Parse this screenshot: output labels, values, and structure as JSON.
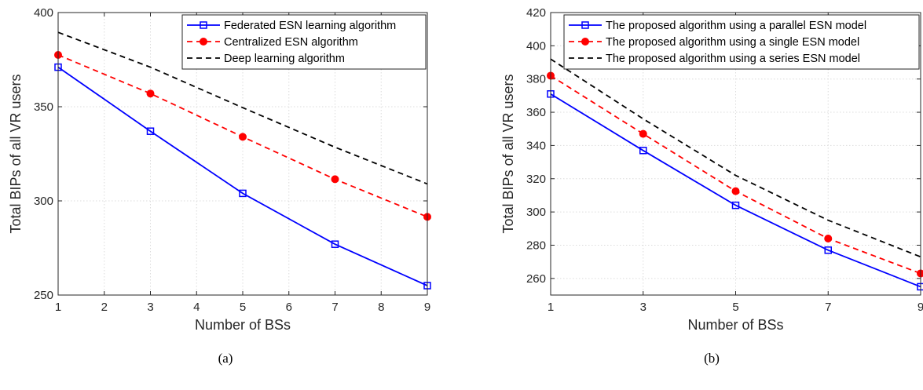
{
  "chart_data": [
    {
      "type": "line",
      "caption": "(a)",
      "xlabel": "Number of BSs",
      "ylabel": "Total BIPs of all VR users",
      "xlim": [
        1,
        9
      ],
      "ylim": [
        250,
        400
      ],
      "xticks": [
        1,
        2,
        3,
        4,
        5,
        6,
        7,
        8,
        9
      ],
      "yticks": [
        250,
        300,
        350,
        400
      ],
      "grid": true,
      "legend_position": "top-right",
      "series": [
        {
          "name": "Federated ESN learning algorithm",
          "color": "#0000ff",
          "line": "solid",
          "marker": "square",
          "x": [
            1,
            3,
            5,
            7,
            9
          ],
          "y": [
            371,
            337,
            304,
            277,
            255
          ]
        },
        {
          "name": "Centralized ESN algorithm",
          "color": "#ff0000",
          "line": "dashed",
          "marker": "circle",
          "x": [
            1,
            3,
            5,
            7,
            9
          ],
          "y": [
            377.5,
            357,
            334,
            311.5,
            291.5
          ]
        },
        {
          "name": "Deep learning algorithm",
          "color": "#000000",
          "line": "dashed",
          "marker": "none",
          "x": [
            1,
            3,
            5,
            7,
            9
          ],
          "y": [
            389.5,
            371,
            349.5,
            328.5,
            309
          ]
        }
      ]
    },
    {
      "type": "line",
      "caption": "(b)",
      "xlabel": "Number of BSs",
      "ylabel": "Total BIPs of all VR users",
      "xlim": [
        1,
        9
      ],
      "ylim": [
        250,
        420
      ],
      "xticks": [
        1,
        3,
        5,
        7,
        9
      ],
      "yticks": [
        260,
        280,
        300,
        320,
        340,
        360,
        380,
        400,
        420
      ],
      "grid": true,
      "legend_position": "top-right",
      "series": [
        {
          "name": "The proposed algorithm using a parallel ESN model",
          "color": "#0000ff",
          "line": "solid",
          "marker": "square",
          "x": [
            1,
            3,
            5,
            7,
            9
          ],
          "y": [
            371,
            337,
            304,
            277,
            255
          ]
        },
        {
          "name": "The proposed algorithm using a single ESN model",
          "color": "#ff0000",
          "line": "dashed",
          "marker": "circle",
          "x": [
            1,
            3,
            5,
            7,
            9
          ],
          "y": [
            382,
            347,
            312.5,
            284,
            263
          ]
        },
        {
          "name": "The proposed algorithm using a series ESN model",
          "color": "#000000",
          "line": "dashed",
          "marker": "none",
          "x": [
            1,
            3,
            5,
            7,
            9
          ],
          "y": [
            392,
            356,
            322,
            295,
            273
          ]
        }
      ]
    }
  ]
}
